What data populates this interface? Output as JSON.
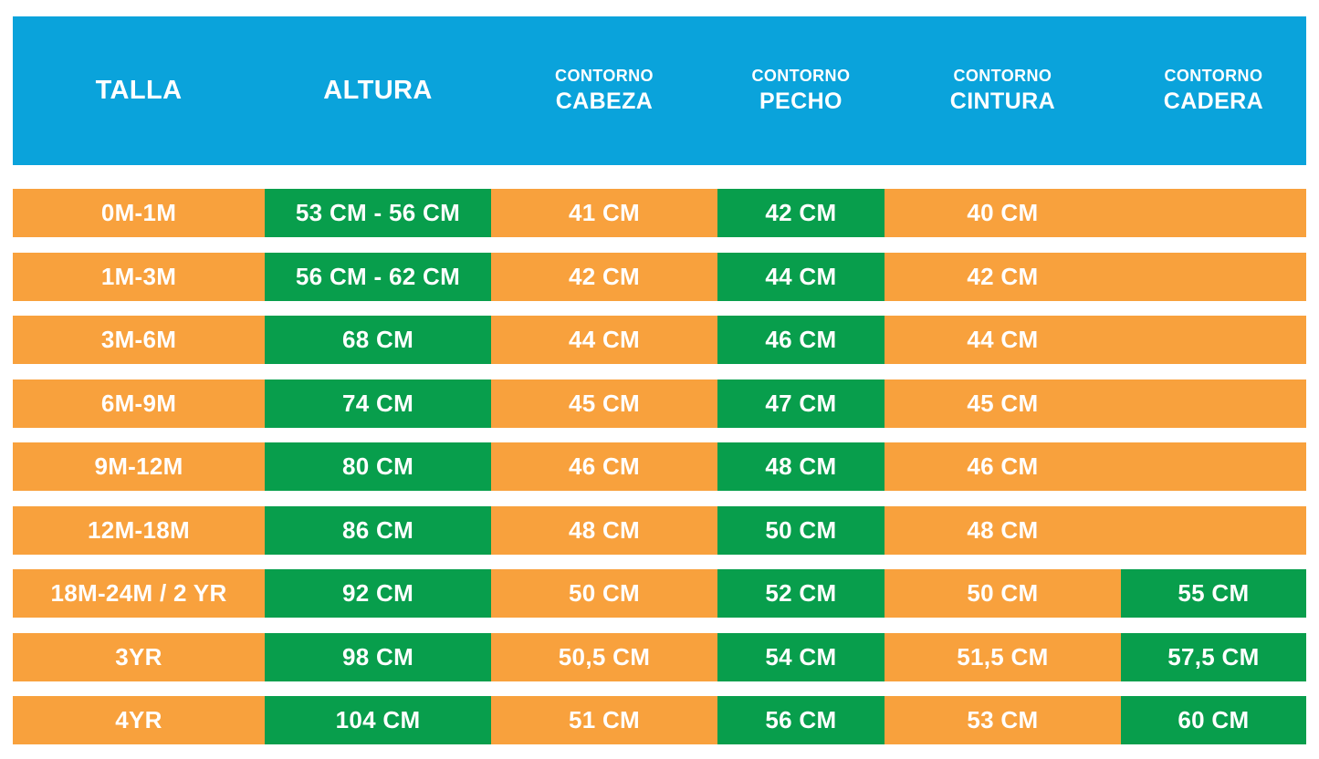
{
  "colors": {
    "header_bg": "#0aa3db",
    "row_bg": "#f8a13d",
    "highlight_bg": "#089e4c",
    "text": "#ffffff",
    "page_bg": "#ffffff"
  },
  "chart_data": {
    "type": "table",
    "columns": [
      {
        "line1": "",
        "line2": "TALLA"
      },
      {
        "line1": "",
        "line2": "ALTURA"
      },
      {
        "line1": "CONTORNO",
        "line2": "CABEZA"
      },
      {
        "line1": "CONTORNO",
        "line2": "PECHO"
      },
      {
        "line1": "CONTORNO",
        "line2": "CINTURA"
      },
      {
        "line1": "CONTORNO",
        "line2": "CADERA"
      }
    ],
    "rows": [
      {
        "cells": [
          {
            "text": "0M-1M",
            "highlight": false
          },
          {
            "text": "53 CM - 56 CM",
            "highlight": true
          },
          {
            "text": "41 CM",
            "highlight": false
          },
          {
            "text": "42 CM",
            "highlight": true
          },
          {
            "text": "40 CM",
            "highlight": false
          },
          {
            "text": "",
            "highlight": false
          }
        ]
      },
      {
        "cells": [
          {
            "text": "1M-3M",
            "highlight": false
          },
          {
            "text": "56 CM - 62 CM",
            "highlight": true
          },
          {
            "text": "42 CM",
            "highlight": false
          },
          {
            "text": "44 CM",
            "highlight": true
          },
          {
            "text": "42 CM",
            "highlight": false
          },
          {
            "text": "",
            "highlight": false
          }
        ]
      },
      {
        "cells": [
          {
            "text": "3M-6M",
            "highlight": false
          },
          {
            "text": "68 CM",
            "highlight": true
          },
          {
            "text": "44 CM",
            "highlight": false
          },
          {
            "text": "46 CM",
            "highlight": true
          },
          {
            "text": "44 CM",
            "highlight": false
          },
          {
            "text": "",
            "highlight": false
          }
        ]
      },
      {
        "cells": [
          {
            "text": "6M-9M",
            "highlight": false
          },
          {
            "text": "74 CM",
            "highlight": true
          },
          {
            "text": "45 CM",
            "highlight": false
          },
          {
            "text": "47 CM",
            "highlight": true
          },
          {
            "text": "45 CM",
            "highlight": false
          },
          {
            "text": "",
            "highlight": false
          }
        ]
      },
      {
        "cells": [
          {
            "text": "9M-12M",
            "highlight": false
          },
          {
            "text": "80 CM",
            "highlight": true
          },
          {
            "text": "46 CM",
            "highlight": false
          },
          {
            "text": "48 CM",
            "highlight": true
          },
          {
            "text": "46 CM",
            "highlight": false
          },
          {
            "text": "",
            "highlight": false
          }
        ]
      },
      {
        "cells": [
          {
            "text": "12M-18M",
            "highlight": false
          },
          {
            "text": "86 CM",
            "highlight": true
          },
          {
            "text": "48 CM",
            "highlight": false
          },
          {
            "text": "50 CM",
            "highlight": true
          },
          {
            "text": "48 CM",
            "highlight": false
          },
          {
            "text": "",
            "highlight": false
          }
        ]
      },
      {
        "cells": [
          {
            "text": "18M-24M / 2 YR",
            "highlight": false
          },
          {
            "text": "92 CM",
            "highlight": true
          },
          {
            "text": "50 CM",
            "highlight": false
          },
          {
            "text": "52 CM",
            "highlight": true
          },
          {
            "text": "50 CM",
            "highlight": false
          },
          {
            "text": "55 CM",
            "highlight": true
          }
        ]
      },
      {
        "cells": [
          {
            "text": "3YR",
            "highlight": false
          },
          {
            "text": "98 CM",
            "highlight": true
          },
          {
            "text": "50,5 CM",
            "highlight": false
          },
          {
            "text": "54 CM",
            "highlight": true
          },
          {
            "text": "51,5 CM",
            "highlight": false
          },
          {
            "text": "57,5 CM",
            "highlight": true
          }
        ]
      },
      {
        "cells": [
          {
            "text": "4YR",
            "highlight": false
          },
          {
            "text": "104 CM",
            "highlight": true
          },
          {
            "text": "51 CM",
            "highlight": false
          },
          {
            "text": "56 CM",
            "highlight": true
          },
          {
            "text": "53 CM",
            "highlight": false
          },
          {
            "text": "60 CM",
            "highlight": true
          }
        ]
      }
    ]
  }
}
